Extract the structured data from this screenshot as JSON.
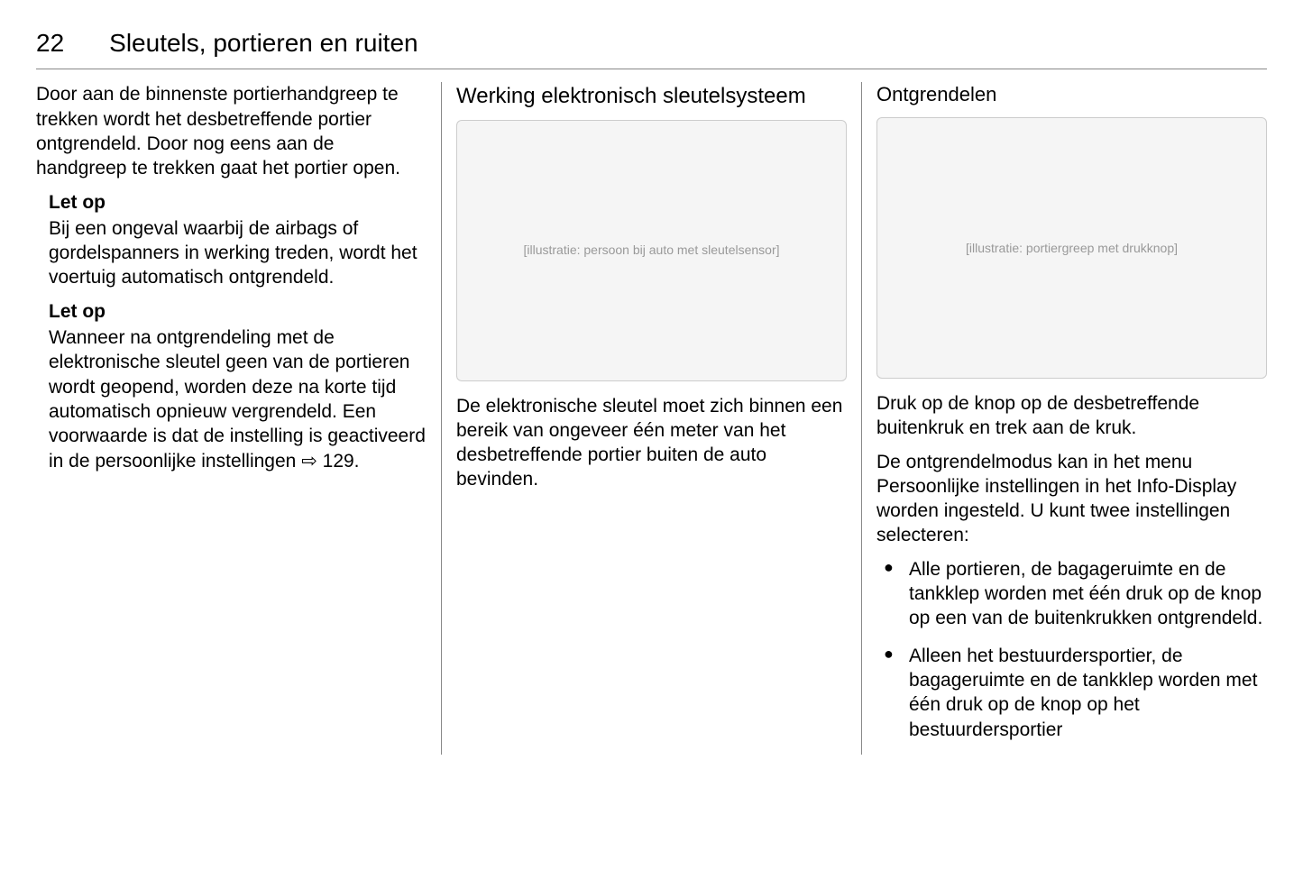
{
  "header": {
    "page_number": "22",
    "chapter_title": "Sleutels, portieren en ruiten"
  },
  "column1": {
    "intro_paragraph": "Door aan de binnenste portierhandgreep te trekken wordt het desbetreffende portier ontgrendeld. Door nog eens aan de handgreep te trekken gaat het portier open.",
    "note1": {
      "label": "Let op",
      "text": "Bij een ongeval waarbij de airbags of gordelspanners in werking treden, wordt het voertuig automatisch ontgrendeld."
    },
    "note2": {
      "label": "Let op",
      "text": "Wanneer na ontgrendeling met de elektronische sleutel geen van de portieren wordt geopend, worden deze na korte tijd automatisch opnieuw vergrendeld. Een voorwaarde is dat de instelling is geactiveerd in de persoonlijke instellingen",
      "ref_icon": "⇨",
      "ref_page": "129."
    }
  },
  "column2": {
    "heading": "Werking elektronisch sleutelsysteem",
    "figure_alt": "[illustratie: persoon bij auto met sleutelsensor]",
    "paragraph": "De elektronische sleutel moet zich binnen een bereik van ongeveer één meter van het desbetreffende portier buiten de auto bevinden."
  },
  "column3": {
    "heading": "Ontgrendelen",
    "figure_alt": "[illustratie: portiergreep met drukknop]",
    "paragraph1": "Druk op de knop op de desbetreffende buitenkruk en trek aan de kruk.",
    "paragraph2": "De ontgrendelmodus kan in het menu Persoonlijke instellingen in het Info-Display worden ingesteld. U kunt twee instellingen selecteren:",
    "bullets": [
      "Alle portieren, de bagageruimte en de tankklep worden met één druk op de knop op een van de buitenkrukken ontgrendeld.",
      "Alleen het bestuurdersportier, de bagageruimte en de tankklep worden met één druk op de knop op het bestuurdersportier"
    ]
  }
}
